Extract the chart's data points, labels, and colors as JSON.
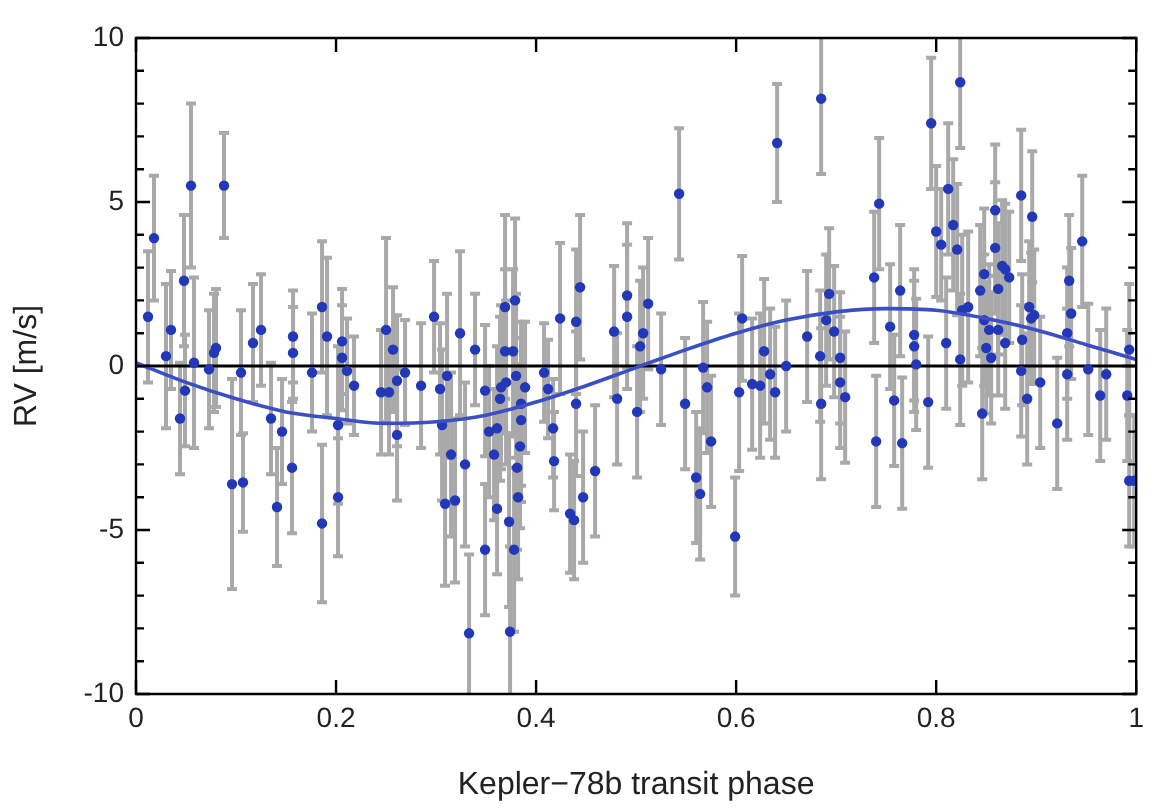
{
  "chart_data": {
    "type": "scatter",
    "xlabel": "Kepler−78b transit phase",
    "ylabel": "RV [m/s]",
    "xlim": [
      0,
      1
    ],
    "ylim": [
      -10,
      10
    ],
    "xticks": [
      0,
      0.2,
      0.4,
      0.6,
      0.8,
      1
    ],
    "yticks": [
      -10,
      {
        "value": -9,
        "label": null
      },
      {
        "value": -8,
        "label": null
      },
      {
        "value": -7,
        "label": null
      },
      {
        "value": -6,
        "label": null
      },
      -5,
      {
        "value": -4,
        "label": null
      },
      {
        "value": -3,
        "label": null
      },
      {
        "value": -2,
        "label": null
      },
      {
        "value": -1,
        "label": null
      },
      0,
      {
        "value": 1,
        "label": null
      },
      {
        "value": 2,
        "label": null
      },
      {
        "value": 3,
        "label": null
      },
      {
        "value": 4,
        "label": null
      },
      5,
      {
        "value": 6,
        "label": null
      },
      {
        "value": 7,
        "label": null
      },
      {
        "value": 8,
        "label": null
      },
      {
        "value": 9,
        "label": null
      },
      10
    ],
    "grid": false,
    "legend": false,
    "marker": "circle",
    "ref_lines": [
      {
        "axis": "y",
        "value": 0,
        "color": "#000000"
      }
    ],
    "series": [
      {
        "color": "#2238b8",
        "x": [
          0.012,
          0.018,
          0.03,
          0.035,
          0.044,
          0.048,
          0.049,
          0.055,
          0.058,
          0.073,
          0.078,
          0.08,
          0.088,
          0.096,
          0.107,
          0.105,
          0.117,
          0.125,
          0.135,
          0.141,
          0.146,
          0.156,
          0.157,
          0.157,
          0.176,
          0.186,
          0.186,
          0.191,
          0.202,
          0.202,
          0.206,
          0.206,
          0.211,
          0.218,
          0.245,
          0.25,
          0.253,
          0.257,
          0.261,
          0.261,
          0.269,
          0.285,
          0.298,
          0.304,
          0.306,
          0.309,
          0.311,
          0.315,
          0.319,
          0.324,
          0.329,
          0.333,
          0.339,
          0.349,
          0.349,
          0.353,
          0.358,
          0.361,
          0.361,
          0.364,
          0.365,
          0.369,
          0.369,
          0.37,
          0.373,
          0.374,
          0.377,
          0.378,
          0.379,
          0.38,
          0.381,
          0.382,
          0.384,
          0.385,
          0.385,
          0.389,
          0.408,
          0.412,
          0.417,
          0.418,
          0.424,
          0.434,
          0.438,
          0.44,
          0.44,
          0.444,
          0.447,
          0.459,
          0.478,
          0.481,
          0.491,
          0.491,
          0.501,
          0.504,
          0.507,
          0.512,
          0.525,
          0.543,
          0.549,
          0.56,
          0.564,
          0.567,
          0.571,
          0.575,
          0.599,
          0.603,
          0.606,
          0.616,
          0.624,
          0.628,
          0.634,
          0.639,
          0.641,
          0.65,
          0.671,
          0.684,
          0.685,
          0.685,
          0.69,
          0.693,
          0.698,
          0.704,
          0.704,
          0.709,
          0.738,
          0.74,
          0.743,
          0.754,
          0.758,
          0.764,
          0.766,
          0.778,
          0.778,
          0.78,
          0.792,
          0.795,
          0.8,
          0.805,
          0.81,
          0.812,
          0.817,
          0.821,
          0.824,
          0.824,
          0.826,
          0.832,
          0.844,
          0.846,
          0.848,
          0.848,
          0.85,
          0.853,
          0.855,
          0.859,
          0.859,
          0.862,
          0.862,
          0.866,
          0.869,
          0.869,
          0.873,
          0.885,
          0.885,
          0.886,
          0.891,
          0.893,
          0.895,
          0.896,
          0.898,
          0.904,
          0.921,
          0.931,
          0.931,
          0.933,
          0.935,
          0.946,
          0.952,
          0.964,
          0.97,
          0.991,
          0.993,
          0.993,
          0.998
        ],
        "values": [
          1.5,
          3.9,
          0.3,
          1.1,
          -1.6,
          2.6,
          -0.75,
          5.5,
          0.1,
          -0.1,
          0.4,
          0.55,
          5.5,
          -3.6,
          -3.55,
          -0.2,
          0.7,
          1.1,
          -1.6,
          -4.3,
          -2.0,
          -3.1,
          0.9,
          0.4,
          -0.2,
          1.8,
          -4.8,
          0.9,
          -1.8,
          -4.0,
          0.75,
          0.25,
          -0.15,
          -0.6,
          -0.8,
          1.1,
          -0.8,
          0.5,
          -2.1,
          -0.45,
          -0.2,
          -0.6,
          1.5,
          -0.7,
          -1.8,
          -4.2,
          -0.3,
          -2.7,
          -4.1,
          1.0,
          -3.0,
          -8.15,
          0.5,
          -5.6,
          -0.75,
          -2.0,
          -2.7,
          -4.35,
          -1.9,
          -1.0,
          -0.65,
          1.8,
          0.45,
          -0.5,
          -4.75,
          -8.1,
          0.45,
          -5.6,
          2.0,
          -0.3,
          -3.1,
          -4.0,
          -2.45,
          -1.15,
          -1.65,
          -0.65,
          -0.2,
          -0.7,
          -1.9,
          -2.9,
          1.45,
          -4.5,
          -4.7,
          1.35,
          -1.15,
          2.4,
          -4.0,
          -3.2,
          1.05,
          -1.0,
          2.15,
          1.5,
          -1.4,
          0.6,
          1.0,
          1.9,
          -0.1,
          5.25,
          -1.15,
          -3.4,
          -3.9,
          -0.05,
          -0.65,
          -2.3,
          -5.2,
          -0.8,
          1.45,
          -0.55,
          -0.6,
          0.45,
          -0.25,
          -0.8,
          6.8,
          0.0,
          0.9,
          0.3,
          8.15,
          -1.15,
          1.4,
          2.2,
          1.05,
          0.25,
          -0.5,
          -0.95,
          2.7,
          -2.3,
          4.95,
          1.2,
          -1.05,
          2.3,
          -2.35,
          0.95,
          0.6,
          0.05,
          -1.1,
          7.4,
          4.1,
          3.7,
          0.7,
          5.4,
          4.3,
          3.55,
          8.65,
          0.2,
          1.7,
          1.8,
          2.3,
          -1.45,
          2.8,
          1.4,
          0.55,
          1.1,
          0.25,
          4.75,
          3.6,
          2.35,
          1.1,
          3.05,
          2.95,
          0.7,
          2.7,
          -0.15,
          5.2,
          0.8,
          -1.0,
          1.8,
          1.45,
          4.55,
          1.55,
          -0.5,
          -1.75,
          1.0,
          -0.25,
          2.6,
          1.6,
          3.8,
          -0.1,
          -0.9,
          -0.25,
          -0.9,
          0.5,
          -3.5,
          -3.5
        ],
        "errors": [
          2,
          1.9,
          2.2,
          1.8,
          1.7,
          2,
          1.7,
          2.5,
          2.6,
          1.8,
          1.8,
          1.8,
          1.6,
          3.2,
          1.5,
          1.9,
          1.8,
          1.7,
          1.7,
          1.8,
          1.6,
          2,
          1.4,
          1.4,
          1.8,
          2,
          2.4,
          2.4,
          2.4,
          1.8,
          1.6,
          1.6,
          1.6,
          1.5,
          1.9,
          2.8,
          1.9,
          1.9,
          2,
          2,
          1.6,
          1.9,
          1.7,
          2,
          2.3,
          2.5,
          2.5,
          2.5,
          2.5,
          2.5,
          2.5,
          2.4,
          1.7,
          2,
          2,
          2,
          2,
          2,
          2.5,
          2.5,
          2.5,
          2.8,
          2.5,
          2.5,
          2.6,
          2.6,
          2.5,
          2.5,
          2.5,
          2.5,
          2.5,
          2.5,
          2.5,
          2.5,
          2.5,
          2,
          1.5,
          1.5,
          1.5,
          1.5,
          2.3,
          1.8,
          1.8,
          2.2,
          2.2,
          2.2,
          2,
          2,
          2,
          2,
          2.2,
          2.2,
          2,
          2,
          2,
          2,
          1.7,
          2,
          2,
          2,
          2,
          2,
          2,
          2,
          1.8,
          2.4,
          1.9,
          2,
          2.2,
          2.2,
          2,
          2,
          1.8,
          2,
          2,
          2,
          2.3,
          2.3,
          2,
          2,
          2,
          2,
          2,
          2,
          2,
          2,
          2,
          1.9,
          2,
          2,
          2,
          2,
          2,
          2,
          2,
          2,
          2,
          1.7,
          2,
          2,
          2,
          2,
          2,
          2,
          2.3,
          2.3,
          2,
          2,
          2,
          2,
          2,
          2,
          2,
          2,
          2,
          2,
          2,
          2,
          2,
          2,
          2,
          2,
          2,
          2,
          2,
          2,
          2,
          2,
          2,
          2,
          2,
          2,
          2,
          2,
          2,
          2,
          2,
          2,
          2,
          2,
          2,
          2,
          2
        ]
      },
      {
        "type": "line",
        "color": "#3a4fc4",
        "marker": "none",
        "x": [
          0,
          0.05,
          0.1,
          0.15,
          0.2,
          0.25,
          0.3,
          0.35,
          0.4,
          0.45,
          0.5,
          0.55,
          0.6,
          0.65,
          0.7,
          0.75,
          0.8,
          0.85,
          0.9,
          0.95,
          1
        ],
        "values": [
          0.1,
          -0.5,
          -1.0,
          -1.4,
          -1.6,
          -1.75,
          -1.7,
          -1.5,
          -1.1,
          -0.6,
          -0.05,
          0.5,
          1.0,
          1.4,
          1.65,
          1.75,
          1.7,
          1.45,
          1.1,
          0.65,
          0.2
        ]
      }
    ]
  }
}
